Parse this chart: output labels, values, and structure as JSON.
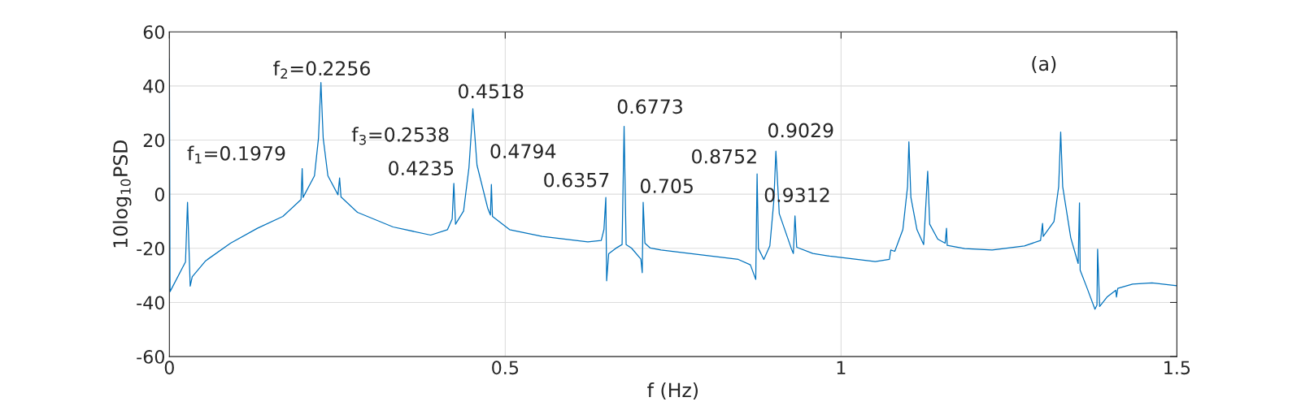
{
  "chart_data": {
    "type": "line",
    "xlabel": "f (Hz)",
    "ylabel": "10log$_{10}$PSD",
    "xlim": [
      0,
      1.5
    ],
    "ylim": [
      -60,
      60
    ],
    "xticks": [
      0,
      0.5,
      1,
      1.5
    ],
    "yticks": [
      -60,
      -40,
      -20,
      0,
      20,
      40,
      60
    ],
    "grid": true,
    "line_style": "solid",
    "marker": "none",
    "series": [
      {
        "color": "#0072bd",
        "x": [
          0,
          0.001,
          0.024,
          0.027,
          0.031,
          0.034,
          0.054,
          0.091,
          0.131,
          0.169,
          0.196,
          0.1977,
          0.199,
          0.216,
          0.222,
          0.2256,
          0.229,
          0.236,
          0.251,
          0.2534,
          0.2555,
          0.28,
          0.333,
          0.389,
          0.414,
          0.421,
          0.4235,
          0.426,
          0.438,
          0.446,
          0.4518,
          0.458,
          0.474,
          0.478,
          0.4794,
          0.481,
          0.5065,
          0.555,
          0.623,
          0.643,
          0.647,
          0.6498,
          0.651,
          0.654,
          0.664,
          0.674,
          0.677,
          0.68,
          0.688,
          0.702,
          0.704,
          0.7054,
          0.708,
          0.716,
          0.732,
          0.797,
          0.847,
          0.865,
          0.873,
          0.875,
          0.877,
          0.885,
          0.894,
          0.9,
          0.903,
          0.908,
          0.926,
          0.929,
          0.9314,
          0.934,
          0.958,
          0.983,
          1.051,
          1.072,
          1.074,
          1.08,
          1.092,
          1.099,
          1.101,
          1.104,
          1.113,
          1.123,
          1.129,
          1.132,
          1.144,
          1.155,
          1.157,
          1.158,
          1.184,
          1.225,
          1.273,
          1.297,
          1.3,
          1.301,
          1.317,
          1.324,
          1.327,
          1.33,
          1.342,
          1.353,
          1.355,
          1.356,
          1.366,
          1.378,
          1.381,
          1.382,
          1.385,
          1.396,
          1.409,
          1.41,
          1.412,
          1.434,
          1.463,
          1.5
        ],
        "values": [
          50,
          -36,
          -25,
          -3,
          -34,
          -30.5,
          -24.6,
          -18.1,
          -12.6,
          -8.2,
          -2,
          9.5,
          -1.2,
          6.8,
          20.7,
          41.3,
          20.7,
          6.8,
          -0.2,
          6,
          -1,
          -6.7,
          -12.1,
          -15.1,
          -13.1,
          -9.2,
          4,
          -11.1,
          -6.2,
          9.8,
          31.6,
          10.7,
          -5.2,
          -7.7,
          3.6,
          -8.2,
          -13.1,
          -15.6,
          -17.6,
          -17.1,
          -13,
          -1.2,
          -32,
          -22,
          -20.1,
          -18.6,
          25.1,
          -18.6,
          -19.9,
          -24,
          -29,
          -3,
          -18.1,
          -19.9,
          -20.6,
          -22.6,
          -24.1,
          -26.1,
          -31.5,
          7.5,
          -20.1,
          -24.1,
          -19.1,
          -2.2,
          15.9,
          -7.2,
          -20.1,
          -21.9,
          -8,
          -19.6,
          -21.9,
          -22.9,
          -24.9,
          -24.1,
          -20.6,
          -21.1,
          -13.1,
          2.8,
          19.4,
          -1.2,
          -13.1,
          -18.6,
          8.5,
          -11.1,
          -16.6,
          -18.1,
          -12.6,
          -18.9,
          -20.1,
          -20.6,
          -19.1,
          -17.1,
          -10.8,
          -15.6,
          -10.1,
          2.8,
          23,
          2.8,
          -16.1,
          -25.6,
          -3.2,
          -28.1,
          -34.5,
          -42.5,
          -41,
          -20.3,
          -41.5,
          -38,
          -35.5,
          -38,
          -34.8,
          -33.2,
          -32.8,
          -33.8
        ]
      }
    ],
    "annotations": [
      {
        "text": "f$_{1}$=0.1979",
        "x": 0.1977,
        "y": 9.5
      },
      {
        "text": "f$_{2}$=0.2256",
        "x": 0.2256,
        "y": 41.3
      },
      {
        "text": "f$_{3}$=0.2538",
        "x": 0.2534,
        "y": 6
      },
      {
        "text": "0.4235",
        "x": 0.4235,
        "y": 4
      },
      {
        "text": "0.4518",
        "x": 0.4518,
        "y": 31.6
      },
      {
        "text": "0.4794",
        "x": 0.4794,
        "y": 3.6
      },
      {
        "text": "0.6357",
        "x": 0.6498,
        "y": -1.2
      },
      {
        "text": "0.6773",
        "x": 0.677,
        "y": 25.1
      },
      {
        "text": "0.705",
        "x": 0.7054,
        "y": -3
      },
      {
        "text": "0.8752",
        "x": 0.875,
        "y": 7.5
      },
      {
        "text": "0.9029",
        "x": 0.903,
        "y": 15.9
      },
      {
        "text": "0.9312",
        "x": 0.9314,
        "y": -8
      },
      "(a)"
    ]
  }
}
